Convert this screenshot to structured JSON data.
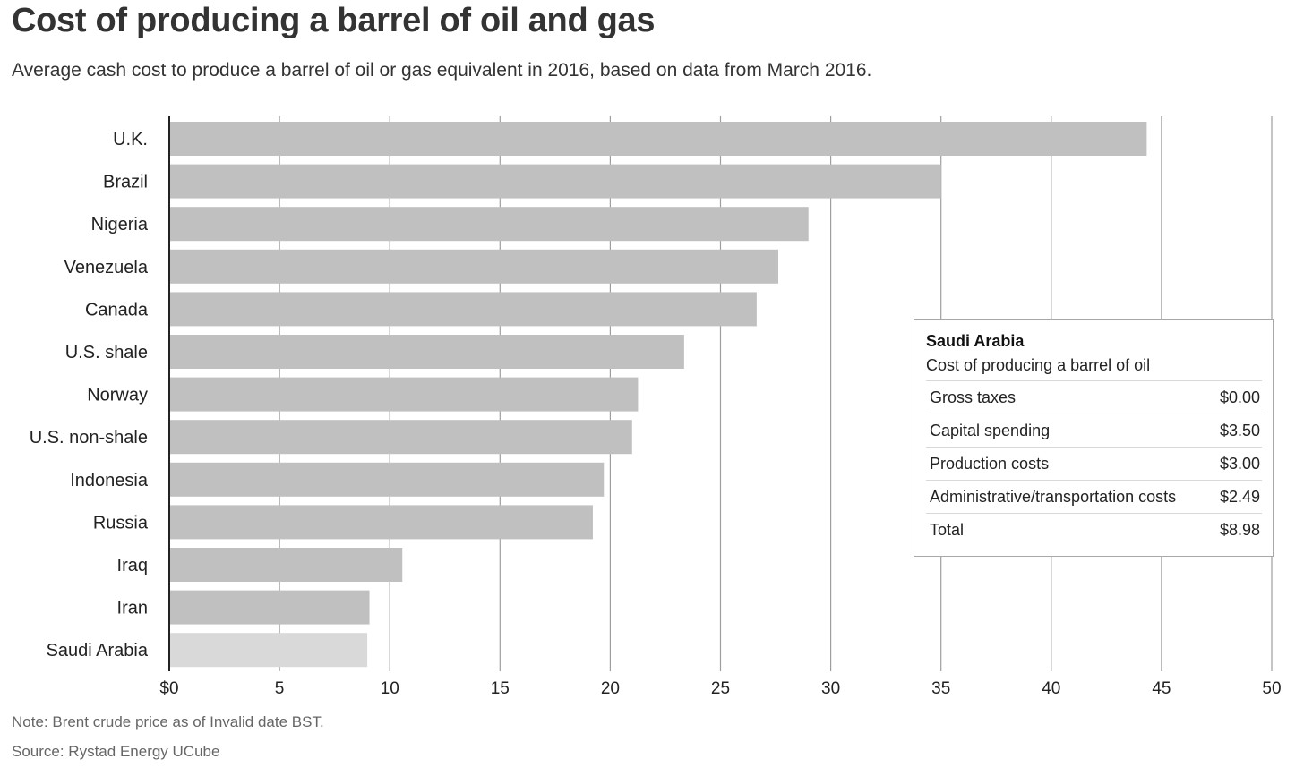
{
  "chart_data": {
    "type": "bar",
    "orientation": "horizontal",
    "title": "Cost of producing a barrel of oil and gas",
    "subtitle": "Average cash cost to produce a barrel of oil or gas equivalent in 2016, based on data from March 2016.",
    "categories": [
      "U.K.",
      "Brazil",
      "Nigeria",
      "Venezuela",
      "Canada",
      "U.S. shale",
      "Norway",
      "U.S. non-shale",
      "Indonesia",
      "Russia",
      "Iraq",
      "Iran",
      "Saudi Arabia"
    ],
    "values": [
      44.33,
      35.0,
      28.99,
      27.62,
      26.64,
      23.35,
      21.26,
      20.99,
      19.71,
      19.21,
      10.57,
      9.08,
      8.98
    ],
    "highlighted": "Saudi Arabia",
    "xlim": [
      0,
      50
    ],
    "xticks": [
      0,
      5,
      10,
      15,
      20,
      25,
      30,
      35,
      40,
      45,
      50
    ],
    "xtick_labels": [
      "$0",
      "5",
      "10",
      "15",
      "20",
      "25",
      "30",
      "35",
      "40",
      "45",
      "50"
    ],
    "xlabel": "",
    "ylabel": "",
    "grid": true,
    "colors": {
      "bar": "#c0c0c0",
      "bar_highlight": "#d9d9d9",
      "grid": "#9e9e9e",
      "axis": "#222222"
    },
    "tooltip": {
      "title": "Saudi Arabia",
      "subtitle": "Cost of producing a barrel of oil",
      "rows": [
        {
          "label": "Gross taxes",
          "value": "$0.00"
        },
        {
          "label": "Capital spending",
          "value": "$3.50"
        },
        {
          "label": "Production costs",
          "value": "$3.00"
        },
        {
          "label": "Administrative/transportation costs",
          "value": "$2.49"
        },
        {
          "label": "Total",
          "value": "$8.98"
        }
      ]
    },
    "note": "Note: Brent crude price as of Invalid date BST.",
    "source": "Source: Rystad Energy UCube"
  }
}
